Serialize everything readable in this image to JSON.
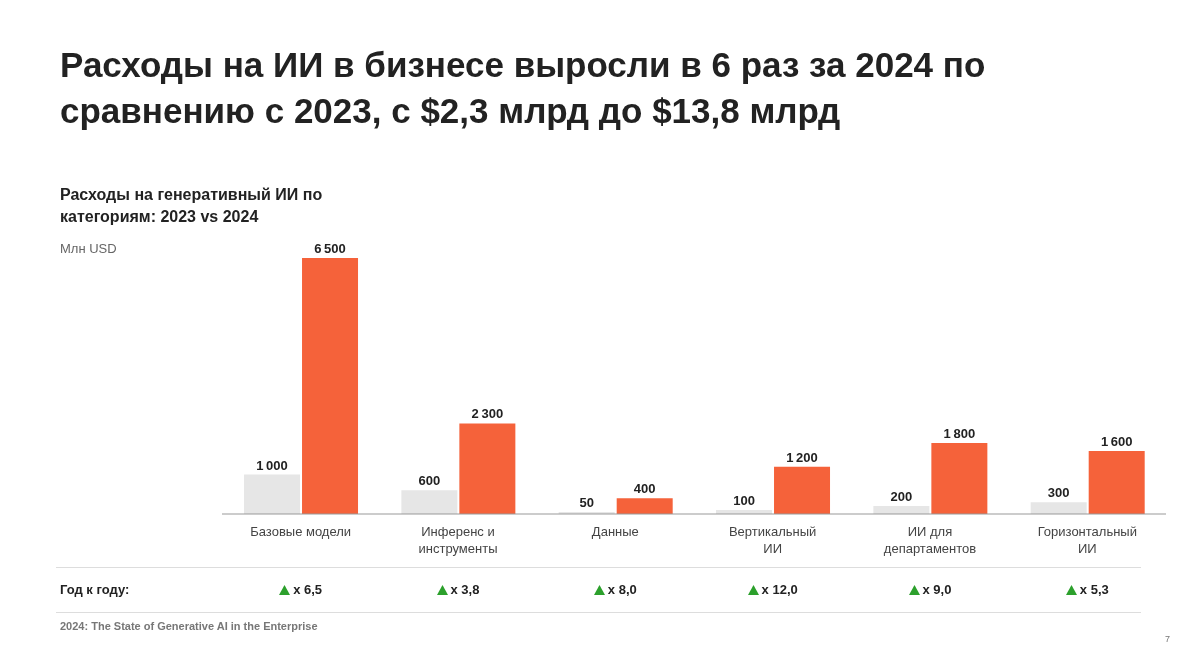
{
  "chart_data": {
    "type": "bar",
    "title": "Расходы на ИИ в бизнесе выросли в 6 раз за 2024 по сравнению с 2023, с $2,3 млрд до $13,8 млрд",
    "subtitle": "Расходы на генеративный ИИ по категориям: 2023 vs 2024",
    "categories": [
      "Базовые модели",
      "Инференс и инструменты",
      "Данные",
      "Вертикальный ИИ",
      "ИИ для департаментов",
      "Горизонтальный ИИ"
    ],
    "series": [
      {
        "color": "#e6e6e6",
        "values": [
          1000,
          600,
          50,
          100,
          200,
          300
        ]
      },
      {
        "color": "#f5623a",
        "values": [
          6500,
          2300,
          400,
          1200,
          1800,
          1600
        ]
      }
    ],
    "data_labels": true,
    "grid": false,
    "legend": false,
    "annotations": [
      "Млн USD",
      "Год к году:",
      "x 6,5",
      "x 3,8",
      "x 8,0",
      "x 12,0",
      "x 9,0",
      "x 5,3",
      "2024: The State of Generative AI in the Enterprise",
      "7"
    ]
  }
}
